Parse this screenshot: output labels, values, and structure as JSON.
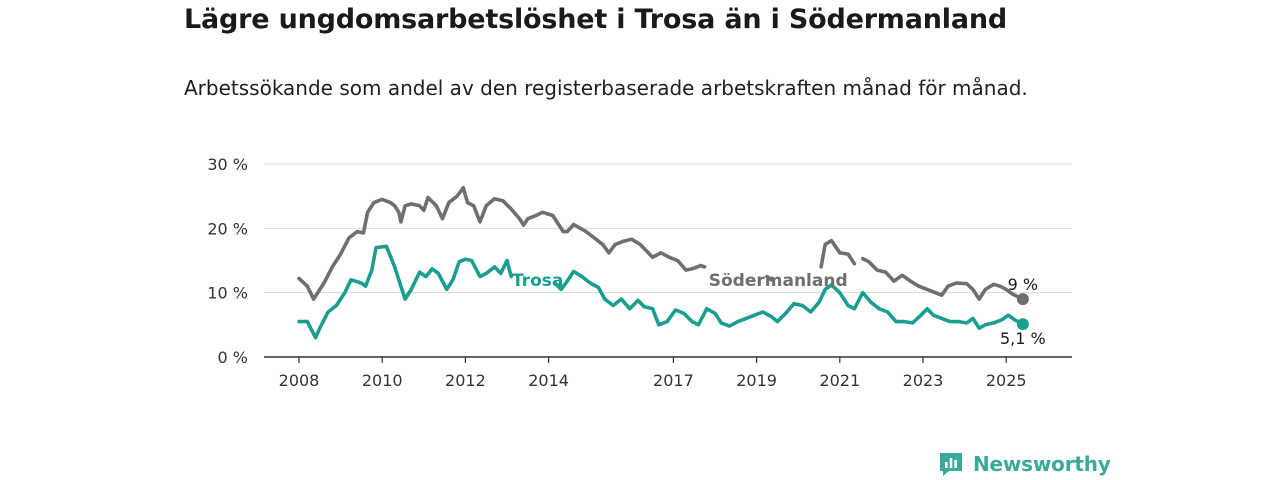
{
  "title": "Lägre ungdomsarbetslöshet i Trosa än i Södermanland",
  "subtitle": "Arbetssökande som andel av den registerbaserade arbetskraften månad för månad.",
  "brand": "Newsworthy",
  "colors": {
    "trosa": "#1a9e8f",
    "sodermanland": "#6e6e73",
    "grid": "#d9d9d9",
    "brand": "#3aa99c"
  },
  "chart_data": {
    "type": "line",
    "title": "Lägre ungdomsarbetslöshet i Trosa än i Södermanland",
    "subtitle": "Arbetssökande som andel av den registerbaserade arbetskraften månad för månad.",
    "xlabel": "",
    "ylabel": "",
    "ylim": [
      0,
      30
    ],
    "xlim": [
      2008,
      2025.4
    ],
    "y_ticks": [
      0,
      10,
      20,
      30
    ],
    "y_tick_labels": [
      "0 %",
      "10 %",
      "20 %",
      "30 %"
    ],
    "x_ticks": [
      2008,
      2010,
      2012,
      2014,
      2017,
      2019,
      2021,
      2023,
      2025
    ],
    "x_tick_labels": [
      "2008",
      "2010",
      "2012",
      "2014",
      "2017",
      "2019",
      "2021",
      "2023",
      "2025"
    ],
    "grid": true,
    "legend": "inline labels",
    "series": [
      {
        "name": "Södermanland",
        "color": "#6e6e73",
        "end_label": "9 %",
        "points": [
          [
            2008.0,
            12.2
          ],
          [
            2008.2,
            11.0
          ],
          [
            2008.35,
            9.0
          ],
          [
            2008.6,
            11.5
          ],
          [
            2008.8,
            14.0
          ],
          [
            2009.0,
            16.0
          ],
          [
            2009.2,
            18.5
          ],
          [
            2009.4,
            19.5
          ],
          [
            2009.55,
            19.3
          ],
          [
            2009.65,
            22.5
          ],
          [
            2009.8,
            24.0
          ],
          [
            2010.0,
            24.5
          ],
          [
            2010.2,
            24.0
          ],
          [
            2010.3,
            23.5
          ],
          [
            2010.4,
            22.5
          ],
          [
            2010.45,
            21.0
          ],
          [
            2010.55,
            23.5
          ],
          [
            2010.7,
            23.8
          ],
          [
            2010.9,
            23.5
          ],
          [
            2011.0,
            22.8
          ],
          [
            2011.1,
            24.8
          ],
          [
            2011.3,
            23.5
          ],
          [
            2011.45,
            21.5
          ],
          [
            2011.6,
            24.0
          ],
          [
            2011.8,
            25.0
          ],
          [
            2011.95,
            26.3
          ],
          [
            2012.05,
            24.0
          ],
          [
            2012.2,
            23.5
          ],
          [
            2012.35,
            21.0
          ],
          [
            2012.5,
            23.5
          ],
          [
            2012.7,
            24.6
          ],
          [
            2012.9,
            24.3
          ],
          [
            2013.1,
            23.0
          ],
          [
            2013.3,
            21.5
          ],
          [
            2013.4,
            20.5
          ],
          [
            2013.5,
            21.5
          ],
          [
            2013.7,
            22.0
          ],
          [
            2013.85,
            22.5
          ],
          [
            2014.1,
            22.0
          ],
          [
            2014.2,
            21.0
          ],
          [
            2014.35,
            19.5
          ],
          [
            2014.45,
            19.5
          ],
          [
            2014.6,
            20.6
          ],
          [
            2014.9,
            19.5
          ],
          [
            2015.1,
            18.5
          ],
          [
            2015.3,
            17.5
          ],
          [
            2015.45,
            16.2
          ],
          [
            2015.6,
            17.5
          ],
          [
            2015.8,
            18.0
          ],
          [
            2016.0,
            18.3
          ],
          [
            2016.2,
            17.5
          ],
          [
            2016.5,
            15.5
          ],
          [
            2016.7,
            16.2
          ],
          [
            2016.9,
            15.5
          ],
          [
            2017.1,
            15.0
          ],
          [
            2017.3,
            13.5
          ],
          [
            2017.5,
            13.8
          ],
          [
            2017.65,
            14.2
          ]
        ],
        "segments": [
          [
            [
              2017.65,
              14.2
            ],
            [
              2017.75,
              14.0
            ]
          ],
          [
            [
              2019.25,
              12.5
            ],
            [
              2019.35,
              12.0
            ]
          ],
          [
            [
              2020.55,
              14.0
            ],
            [
              2020.65,
              17.5
            ],
            [
              2020.8,
              18.1
            ],
            [
              2021.0,
              16.2
            ],
            [
              2021.2,
              16.0
            ],
            [
              2021.35,
              14.5
            ]
          ],
          [
            [
              2021.55,
              15.3
            ],
            [
              2021.7,
              14.8
            ],
            [
              2021.9,
              13.5
            ],
            [
              2022.1,
              13.2
            ],
            [
              2022.3,
              11.8
            ],
            [
              2022.5,
              12.7
            ],
            [
              2022.7,
              11.8
            ],
            [
              2022.9,
              11.0
            ],
            [
              2023.1,
              10.5
            ],
            [
              2023.3,
              10.0
            ],
            [
              2023.45,
              9.6
            ],
            [
              2023.6,
              11.0
            ],
            [
              2023.8,
              11.5
            ],
            [
              2024.05,
              11.4
            ],
            [
              2024.2,
              10.5
            ],
            [
              2024.35,
              9.0
            ],
            [
              2024.5,
              10.5
            ],
            [
              2024.7,
              11.3
            ],
            [
              2024.85,
              11.0
            ],
            [
              2025.0,
              10.5
            ],
            [
              2025.15,
              9.8
            ],
            [
              2025.4,
              9.0
            ]
          ]
        ]
      },
      {
        "name": "Trosa",
        "color": "#1a9e8f",
        "end_label": "5,1 %",
        "points": [
          [
            2008.0,
            5.5
          ],
          [
            2008.2,
            5.5
          ],
          [
            2008.4,
            3.0
          ],
          [
            2008.5,
            4.5
          ],
          [
            2008.7,
            7.0
          ],
          [
            2008.9,
            8.0
          ],
          [
            2009.1,
            10.0
          ],
          [
            2009.25,
            12.0
          ],
          [
            2009.5,
            11.5
          ],
          [
            2009.6,
            11.0
          ],
          [
            2009.75,
            13.5
          ],
          [
            2009.85,
            17.0
          ],
          [
            2010.1,
            17.2
          ],
          [
            2010.3,
            14.0
          ],
          [
            2010.45,
            11.0
          ],
          [
            2010.55,
            9.0
          ],
          [
            2010.7,
            10.5
          ],
          [
            2010.9,
            13.2
          ],
          [
            2011.05,
            12.5
          ],
          [
            2011.2,
            13.7
          ],
          [
            2011.35,
            13.0
          ],
          [
            2011.55,
            10.5
          ],
          [
            2011.7,
            12.0
          ],
          [
            2011.85,
            14.8
          ],
          [
            2012.0,
            15.2
          ],
          [
            2012.15,
            15.0
          ],
          [
            2012.35,
            12.5
          ],
          [
            2012.5,
            13.0
          ],
          [
            2012.7,
            14.0
          ],
          [
            2012.85,
            13.0
          ],
          [
            2013.0,
            15.0
          ],
          [
            2013.1,
            12.5
          ]
        ],
        "segments": [
          [
            [
              2014.15,
              11.5
            ],
            [
              2014.3,
              10.5
            ],
            [
              2014.45,
              11.8
            ],
            [
              2014.6,
              13.3
            ],
            [
              2014.8,
              12.5
            ],
            [
              2015.0,
              11.5
            ],
            [
              2015.2,
              10.8
            ],
            [
              2015.35,
              9.0
            ],
            [
              2015.55,
              8.0
            ],
            [
              2015.75,
              9.0
            ],
            [
              2015.95,
              7.5
            ],
            [
              2016.15,
              8.8
            ],
            [
              2016.3,
              7.8
            ],
            [
              2016.5,
              7.5
            ],
            [
              2016.65,
              5.0
            ],
            [
              2016.85,
              5.5
            ],
            [
              2017.05,
              7.3
            ],
            [
              2017.25,
              6.8
            ],
            [
              2017.45,
              5.5
            ],
            [
              2017.6,
              5.0
            ],
            [
              2017.8,
              7.5
            ],
            [
              2018.0,
              6.8
            ],
            [
              2018.15,
              5.3
            ],
            [
              2018.35,
              4.8
            ],
            [
              2018.55,
              5.5
            ],
            [
              2018.75,
              6.0
            ],
            [
              2018.95,
              6.5
            ],
            [
              2019.15,
              7.0
            ],
            [
              2019.35,
              6.3
            ],
            [
              2019.5,
              5.5
            ],
            [
              2019.7,
              6.8
            ],
            [
              2019.9,
              8.3
            ],
            [
              2020.1,
              8.0
            ],
            [
              2020.3,
              7.0
            ],
            [
              2020.5,
              8.5
            ],
            [
              2020.65,
              10.5
            ],
            [
              2020.8,
              11.2
            ],
            [
              2021.0,
              10.0
            ],
            [
              2021.2,
              8.0
            ],
            [
              2021.35,
              7.5
            ],
            [
              2021.55,
              10.0
            ],
            [
              2021.75,
              8.5
            ],
            [
              2021.95,
              7.5
            ],
            [
              2022.15,
              7.0
            ],
            [
              2022.35,
              5.5
            ],
            [
              2022.55,
              5.5
            ],
            [
              2022.75,
              5.3
            ],
            [
              2022.95,
              6.5
            ],
            [
              2023.1,
              7.5
            ],
            [
              2023.25,
              6.5
            ],
            [
              2023.45,
              6.0
            ],
            [
              2023.65,
              5.5
            ],
            [
              2023.85,
              5.5
            ],
            [
              2024.05,
              5.3
            ],
            [
              2024.2,
              6.0
            ],
            [
              2024.35,
              4.5
            ],
            [
              2024.5,
              5.0
            ],
            [
              2024.7,
              5.3
            ],
            [
              2024.9,
              5.8
            ],
            [
              2025.05,
              6.5
            ],
            [
              2025.2,
              5.8
            ],
            [
              2025.4,
              5.1
            ]
          ]
        ]
      }
    ],
    "annotations": [
      {
        "text": "Trosa",
        "series": "Trosa"
      },
      {
        "text": "Södermanland",
        "series": "Södermanland"
      }
    ]
  }
}
